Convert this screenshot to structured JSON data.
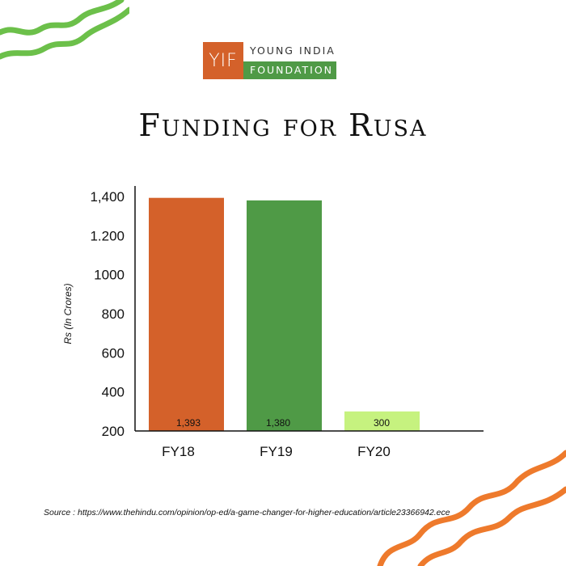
{
  "logo": {
    "mark": "YIF",
    "line1": "YOUNG INDIA",
    "line2": "FOUNDATION"
  },
  "title": "Funding for Rusa",
  "source": "Source : https://www.thehindu.com/opinion/op-ed/a-game-changer-for-higher-education/article23366942.ece",
  "colors": {
    "orange": "#d4612a",
    "green": "#4f9a46",
    "lightgreen": "#c6f27f",
    "squiggle_green": "#6cc04a",
    "squiggle_orange": "#ee7a2c"
  },
  "chart_data": {
    "type": "bar",
    "title": "Funding for Rusa",
    "xlabel": "",
    "ylabel": "Rs (In Crores)",
    "categories": [
      "FY18",
      "FY19",
      "FY20"
    ],
    "values": [
      1393,
      1380,
      300
    ],
    "value_labels": [
      "1,393",
      "1,380",
      "300"
    ],
    "bar_colors": [
      "#d4612a",
      "#4f9a46",
      "#c6f27f"
    ],
    "ytick_values": [
      200,
      400,
      600,
      800,
      1000,
      1200,
      1400
    ],
    "ytick_labels": [
      "200",
      "400",
      "600",
      "800",
      "1000",
      "1.200",
      "1,400"
    ],
    "ylim": [
      200,
      1400
    ],
    "grid": false
  }
}
